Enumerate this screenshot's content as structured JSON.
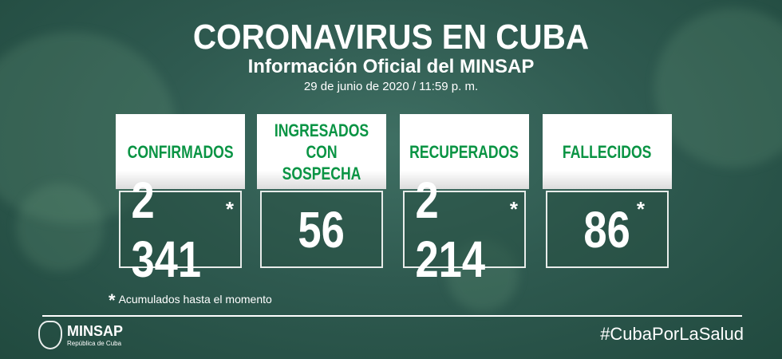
{
  "header": {
    "title": "CORONAVIRUS EN CUBA",
    "subtitle": "Información Oficial del MINSAP",
    "date": "29 de junio de 2020 / 11:59 p. m."
  },
  "cards": [
    {
      "label": "CONFIRMADOS",
      "value": "2 341",
      "asterisk": "*"
    },
    {
      "label": "INGRESADOS CON SOSPECHA",
      "value": "56",
      "asterisk": ""
    },
    {
      "label": "RECUPERADOS",
      "value": "2 214",
      "asterisk": "*"
    },
    {
      "label": "FALLECIDOS",
      "value": "86",
      "asterisk": "*"
    }
  ],
  "footnote": {
    "mark": "*",
    "text": "Acumulados hasta el momento"
  },
  "footer": {
    "logo_name": "MINSAP",
    "logo_sub": "República de Cuba",
    "hashtag": "#CubaPorLaSalud"
  },
  "colors": {
    "accent": "#0a9444",
    "background": "#2f5a50"
  }
}
